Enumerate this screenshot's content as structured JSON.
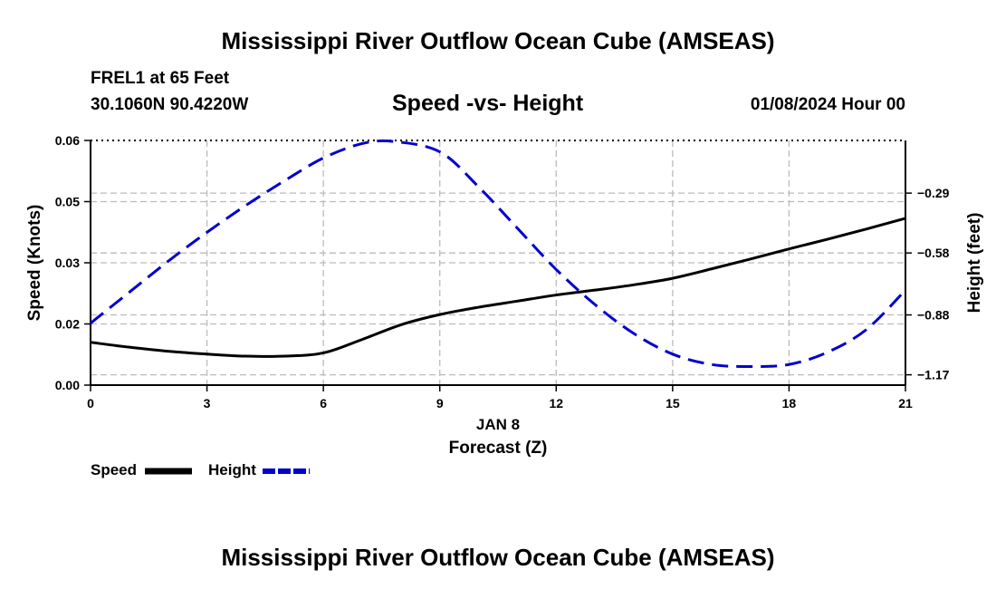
{
  "page": {
    "title": "Mississippi River Outflow Ocean Cube (AMSEAS)",
    "station_line1": "FREL1 at 65 Feet",
    "station_line2": "30.1060N  90.4220W",
    "subtitle": "Speed -vs- Height",
    "date_label": "01/08/2024 Hour 00",
    "footer_title": "Mississippi River Outflow Ocean Cube (AMSEAS)"
  },
  "legend": {
    "speed_label": "Speed",
    "height_label": "Height"
  },
  "colors": {
    "speed": "#000000",
    "height": "#0000cc",
    "grid": "#bbbbbb"
  },
  "chart_data": {
    "type": "line",
    "title": "Speed -vs- Height",
    "xlabel": "Forecast (Z)",
    "xlabel_date": "JAN 8",
    "ylabel": "Speed (Knots)",
    "ylabel_right": "Height (feet)",
    "xlim": [
      0,
      21
    ],
    "x_ticks": [
      0,
      3,
      6,
      9,
      12,
      15,
      18,
      21
    ],
    "ylim": [
      0,
      0.06
    ],
    "y_ticks": [
      0.0,
      0.015,
      0.03,
      0.045,
      0.06
    ],
    "y_tick_labels": [
      "0.00",
      "0.02",
      "0.03",
      "0.05",
      "0.06"
    ],
    "y2lim": [
      -1.22,
      -0.035
    ],
    "y2_ticks": [
      -1.17,
      -0.88,
      -0.58,
      -0.29
    ],
    "y2_tick_labels": [
      "−1.17",
      "−0.88",
      "−0.58",
      "−0.29"
    ],
    "grid": true,
    "series": [
      {
        "name": "Speed",
        "axis": "left",
        "style": "solid",
        "x": [
          0,
          1,
          2,
          3,
          4,
          5,
          6,
          7,
          8,
          9,
          10,
          11,
          12,
          13,
          14,
          15,
          16,
          17,
          18,
          19,
          20,
          21
        ],
        "values": [
          0.0105,
          0.0093,
          0.0083,
          0.0076,
          0.0071,
          0.0071,
          0.0079,
          0.0112,
          0.0148,
          0.0173,
          0.0191,
          0.0206,
          0.0221,
          0.0233,
          0.0246,
          0.0262,
          0.0285,
          0.0309,
          0.0334,
          0.0358,
          0.0383,
          0.0409
        ]
      },
      {
        "name": "Height",
        "axis": "right",
        "style": "dashed",
        "x": [
          0,
          1,
          2,
          3,
          4,
          5,
          6,
          7,
          7.8,
          9,
          10,
          11,
          12,
          13,
          14,
          15,
          16,
          17,
          18,
          19,
          20,
          21
        ],
        "values": [
          -0.92,
          -0.77,
          -0.62,
          -0.48,
          -0.35,
          -0.23,
          -0.12,
          -0.05,
          -0.04,
          -0.09,
          -0.26,
          -0.46,
          -0.66,
          -0.83,
          -0.97,
          -1.07,
          -1.12,
          -1.13,
          -1.12,
          -1.06,
          -0.95,
          -0.76
        ]
      }
    ]
  }
}
